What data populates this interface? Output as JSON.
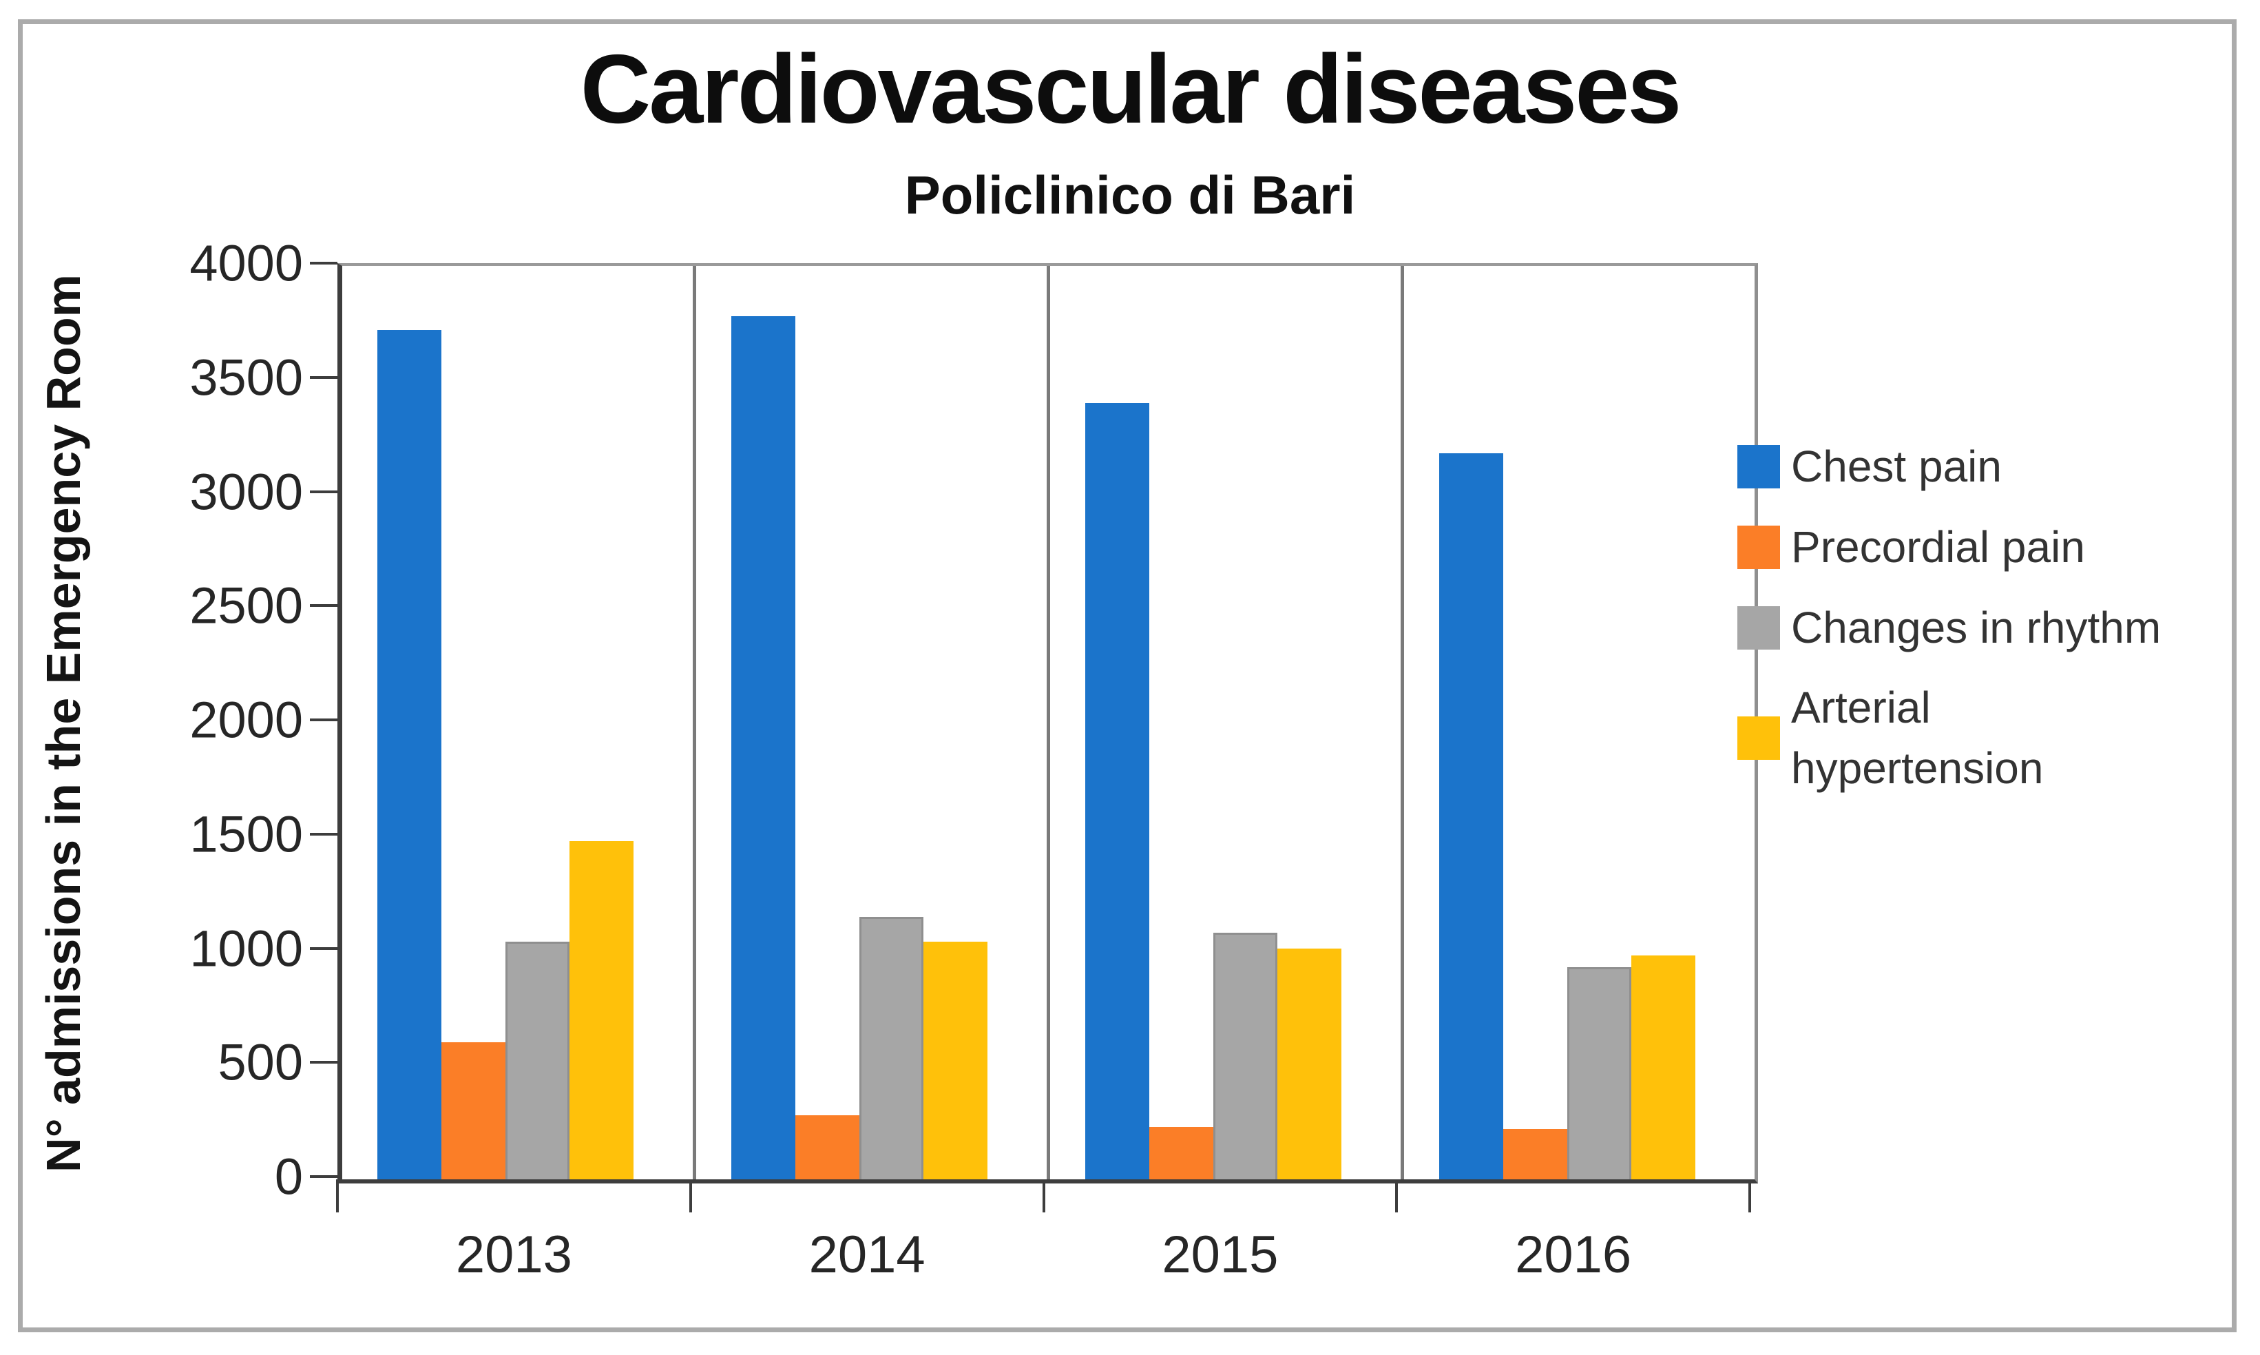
{
  "title": "Cardiovascular diseases",
  "subtitle": "Policlinico di Bari",
  "y_axis": {
    "title": "N°  admissions in the Emergency Room",
    "ticks": [
      0,
      500,
      1000,
      1500,
      2000,
      2500,
      3000,
      3500,
      4000
    ],
    "max": 4000
  },
  "x_axis": {
    "categories": [
      "2013",
      "2014",
      "2015",
      "2016"
    ]
  },
  "legend": {
    "position": "right",
    "items": [
      {
        "label": "Chest pain",
        "color": "#1b74cb"
      },
      {
        "label": "Precordial pain",
        "color": "#fb7e27"
      },
      {
        "label": "Changes in rhythm",
        "color": "#a6a6a6"
      },
      {
        "label": "Arterial hypertension",
        "color": "#ffc10a"
      }
    ]
  },
  "chart_data": {
    "type": "bar",
    "title": "Cardiovascular diseases",
    "subtitle": "Policlinico di Bari",
    "xlabel": "",
    "ylabel": "N°  admissions in the Emergency Room",
    "ylim": [
      0,
      4000
    ],
    "ytick_step": 500,
    "grid": false,
    "legend_position": "right",
    "panel_separators": true,
    "categories": [
      "2013",
      "2014",
      "2015",
      "2016"
    ],
    "series": [
      {
        "name": "Chest pain",
        "color": "#1b74cb",
        "values": [
          3720,
          3780,
          3400,
          3180
        ]
      },
      {
        "name": "Precordial pain",
        "color": "#fb7e27",
        "values": [
          600,
          280,
          230,
          220
        ]
      },
      {
        "name": "Changes in rhythm",
        "color": "#a6a6a6",
        "values": [
          1040,
          1150,
          1080,
          930
        ]
      },
      {
        "name": "Arterial hypertension",
        "color": "#ffc10a",
        "values": [
          1480,
          1040,
          1010,
          980
        ]
      }
    ]
  },
  "colors": {
    "axis_dark": "#3d3d3d",
    "axis_light": "#9a9a9a",
    "panel_separator": "#7a7a7a",
    "frame_border": "#ababab",
    "text": "#262626"
  }
}
